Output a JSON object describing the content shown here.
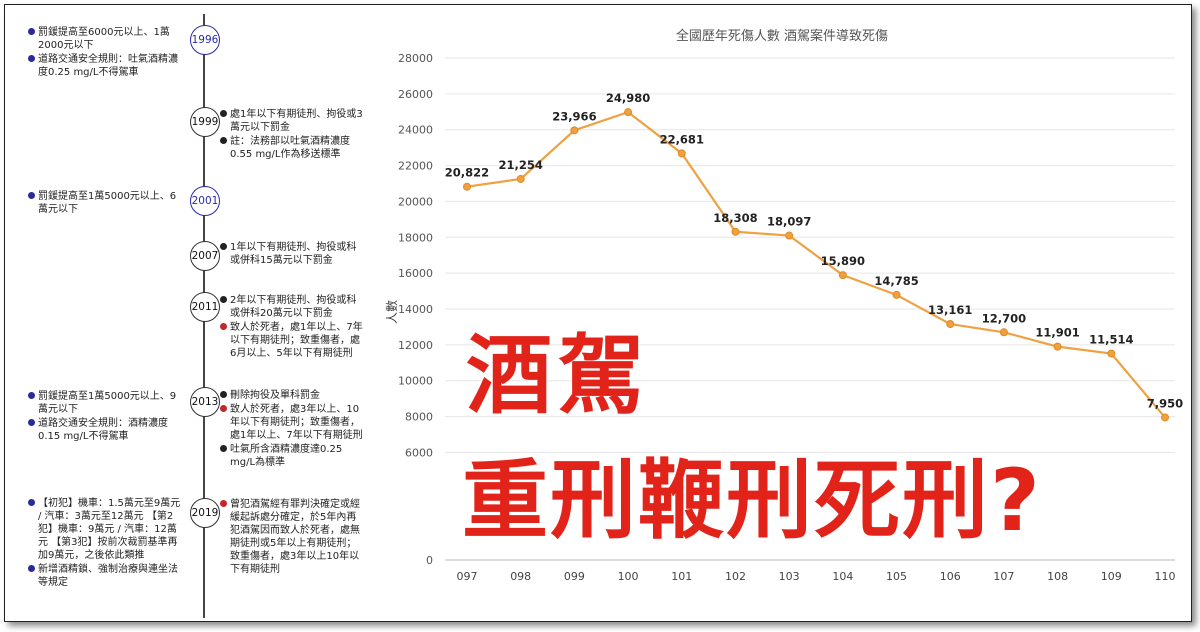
{
  "timeline": {
    "years": [
      {
        "label": "1996",
        "color": "blue"
      },
      {
        "label": "1999",
        "color": "black"
      },
      {
        "label": "2001",
        "color": "blue"
      },
      {
        "label": "2007",
        "color": "black"
      },
      {
        "label": "2011",
        "color": "black"
      },
      {
        "label": "2013",
        "color": "black"
      },
      {
        "label": "2019",
        "color": "black"
      }
    ],
    "left_notes": [
      [
        "罰鍰提高至6000元以上、1萬2000元以下",
        "道路交通安全規則：吐氣酒精濃度0.25 mg/L不得駕車"
      ],
      [
        "罰鍰提高至1萬5000元以上、6萬元以下"
      ],
      [
        "罰鍰提高至1萬5000元以上、9萬元以下",
        "道路交通安全規則：酒精濃度0.15 mg/L不得駕車"
      ],
      [
        "【初犯】機車：1.5萬元至9萬元 / 汽車：3萬元至12萬元 【第2犯】機車：9萬元 / 汽車：12萬元 【第3犯】按前次裁罰基準再加9萬元，之後依此類推",
        "新增酒精鎖、強制治療與連坐法等規定"
      ]
    ],
    "right_notes": [
      [
        "處1年以下有期徒刑、拘役或3萬元以下罰金",
        "註：法務部以吐氣酒精濃度0.55 mg/L作為移送標準"
      ],
      [
        "1年以下有期徒刑、拘役或科或併科15萬元以下罰金"
      ],
      [
        "2年以下有期徒刑、拘役或科或併科20萬元以下罰金",
        "致人於死者，處1年以上、7年以下有期徒刑；致重傷者，處6月以上、5年以下有期徒刑"
      ],
      [
        "刪除拘役及單科罰金",
        "致人於死者，處3年以上、10年以下有期徒刑；致重傷者，處1年以上、7年以下有期徒刑",
        "吐氣所含酒精濃度達0.25 mg/L為標準"
      ],
      [
        "曾犯酒駕經有罪判決確定或經緩起訴處分確定，於5年內再犯酒駕因而致人於死者，處無期徒刑或5年以上有期徒刑；致重傷者，處3年以上10年以下有期徒刑"
      ]
    ]
  },
  "overlay": {
    "line1": "酒駕",
    "line2": "重刑鞭刑死刑?"
  },
  "chart_data": {
    "type": "line",
    "title": "全國歷年死傷人數 酒駕案件導致死傷",
    "xlabel": "",
    "ylabel": "人數",
    "categories": [
      "097",
      "098",
      "099",
      "100",
      "101",
      "102",
      "103",
      "104",
      "105",
      "106",
      "107",
      "108",
      "109",
      "110"
    ],
    "series": [
      {
        "values": [
          20822,
          21254,
          23966,
          24980,
          22681,
          18308,
          18097,
          15890,
          14785,
          13161,
          12700,
          11901,
          11514,
          7950
        ],
        "labels": [
          "20,822",
          "21,254",
          "23,966",
          "24,980",
          "22,681",
          "18,308",
          "18,097",
          "15,890",
          "14,785",
          "13,161",
          "12,700",
          "11,901",
          "11,514",
          "7,950"
        ],
        "color": "#f0a040"
      }
    ],
    "ylim": [
      0,
      28000
    ],
    "yticks": [
      "0",
      "6000",
      "8000",
      "10000",
      "12000",
      "14000",
      "16000",
      "18000",
      "20000",
      "22000",
      "24000",
      "26000",
      "28000"
    ],
    "grid": true,
    "legend": "none"
  }
}
